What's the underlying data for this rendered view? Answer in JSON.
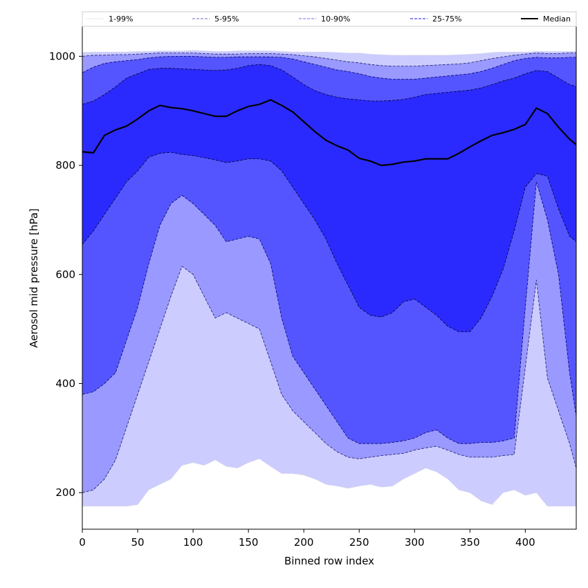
{
  "chart_data": {
    "type": "area",
    "title": "",
    "xlabel": "Binned row index",
    "ylabel": "Aerosol mid pressure [hPa]",
    "xlim": [
      0,
      446
    ],
    "ylim": [
      133,
      1055
    ],
    "xticks": [
      0,
      50,
      100,
      150,
      200,
      250,
      300,
      350,
      400
    ],
    "yticks": [
      200,
      400,
      600,
      800,
      1000
    ],
    "grid": false,
    "legend_position": "top",
    "x": [
      0,
      10,
      20,
      30,
      40,
      50,
      60,
      70,
      80,
      90,
      100,
      110,
      120,
      130,
      140,
      150,
      160,
      170,
      180,
      190,
      200,
      210,
      220,
      230,
      240,
      250,
      260,
      270,
      280,
      290,
      300,
      310,
      320,
      330,
      340,
      350,
      360,
      370,
      380,
      390,
      400,
      410,
      420,
      430,
      440,
      446
    ],
    "bands": [
      {
        "name": "1-99%",
        "color": "#ccccff",
        "line_style": "dotted",
        "line_color": "#d0d0d0",
        "lower": [
          175,
          175,
          175,
          175,
          175,
          178,
          205,
          215,
          225,
          250,
          255,
          250,
          260,
          248,
          245,
          255,
          262,
          248,
          235,
          235,
          232,
          225,
          215,
          212,
          208,
          212,
          215,
          210,
          212,
          225,
          235,
          245,
          238,
          225,
          205,
          200,
          185,
          178,
          200,
          205,
          195,
          200,
          175,
          175,
          175,
          175
        ],
        "upper": [
          1007,
          1008,
          1008,
          1008,
          1008,
          1009,
          1009,
          1010,
          1010,
          1010,
          1011,
          1010,
          1009,
          1009,
          1010,
          1010,
          1010,
          1010,
          1009,
          1008,
          1008,
          1008,
          1008,
          1007,
          1006,
          1006,
          1004,
          1003,
          1002,
          1002,
          1002,
          1002,
          1002,
          1002,
          1003,
          1004,
          1005,
          1007,
          1008,
          1008,
          1008,
          1009,
          1009,
          1009,
          1009,
          1009
        ]
      },
      {
        "name": "5-95%",
        "color": "#9999ff",
        "line_style": "dashed",
        "line_color": "#1a1a66",
        "lower": [
          200,
          205,
          225,
          260,
          320,
          380,
          440,
          500,
          560,
          615,
          600,
          560,
          520,
          530,
          520,
          510,
          500,
          440,
          380,
          350,
          330,
          310,
          290,
          275,
          265,
          262,
          265,
          268,
          270,
          272,
          278,
          282,
          285,
          278,
          270,
          265,
          265,
          265,
          268,
          270,
          430,
          590,
          410,
          350,
          290,
          245
        ],
        "upper": [
          1000,
          1002,
          1002,
          1003,
          1003,
          1004,
          1005,
          1006,
          1006,
          1006,
          1006,
          1005,
          1004,
          1004,
          1004,
          1005,
          1005,
          1005,
          1004,
          1003,
          1001,
          999,
          996,
          993,
          990,
          988,
          985,
          983,
          982,
          982,
          982,
          983,
          984,
          985,
          986,
          988,
          992,
          996,
          999,
          1002,
          1004,
          1006,
          1005,
          1005,
          1006,
          1006
        ]
      },
      {
        "name": "10-90%",
        "color": "#5555ff",
        "line_style": "dashed",
        "line_color": "#000066",
        "lower": [
          380,
          385,
          400,
          420,
          480,
          540,
          620,
          690,
          730,
          745,
          730,
          710,
          690,
          660,
          665,
          670,
          665,
          620,
          520,
          450,
          420,
          390,
          360,
          330,
          300,
          290,
          290,
          290,
          292,
          295,
          300,
          310,
          315,
          300,
          290,
          290,
          292,
          292,
          295,
          300,
          540,
          770,
          700,
          600,
          420,
          340
        ],
        "upper": [
          970,
          980,
          987,
          990,
          992,
          994,
          997,
          999,
          1000,
          1000,
          1000,
          999,
          998,
          998,
          999,
          999,
          999,
          999,
          998,
          995,
          990,
          985,
          980,
          975,
          972,
          968,
          963,
          960,
          958,
          958,
          958,
          960,
          962,
          964,
          966,
          968,
          972,
          978,
          985,
          992,
          996,
          998,
          997,
          997,
          998,
          998
        ]
      },
      {
        "name": "25-75%",
        "color": "#2a2aff",
        "line_style": "dashed",
        "line_color": "#000033",
        "lower": [
          655,
          680,
          710,
          740,
          770,
          790,
          815,
          822,
          824,
          820,
          818,
          814,
          810,
          805,
          808,
          812,
          812,
          808,
          790,
          760,
          730,
          700,
          665,
          620,
          580,
          540,
          525,
          522,
          530,
          550,
          555,
          540,
          525,
          505,
          495,
          495,
          520,
          560,
          610,
          680,
          760,
          785,
          780,
          720,
          670,
          660
        ],
        "upper": [
          912,
          918,
          930,
          944,
          960,
          968,
          976,
          978,
          978,
          977,
          976,
          975,
          974,
          975,
          978,
          983,
          985,
          983,
          975,
          962,
          948,
          937,
          930,
          925,
          922,
          920,
          918,
          918,
          919,
          921,
          925,
          930,
          932,
          934,
          936,
          938,
          942,
          948,
          955,
          960,
          968,
          974,
          972,
          960,
          948,
          945
        ]
      }
    ],
    "series": [
      {
        "name": "Median",
        "color": "#000000",
        "values": [
          825,
          823,
          855,
          865,
          872,
          885,
          900,
          910,
          906,
          904,
          900,
          895,
          890,
          890,
          900,
          908,
          912,
          920,
          910,
          898,
          880,
          862,
          846,
          836,
          828,
          813,
          808,
          800,
          802,
          806,
          808,
          812,
          812,
          812,
          822,
          834,
          845,
          855,
          860,
          866,
          875,
          905,
          895,
          870,
          848,
          838
        ]
      }
    ],
    "legend": [
      {
        "label": "1-99%",
        "color": "#d0d0d0",
        "style": "dotted"
      },
      {
        "label": "5-95%",
        "color": "#8a8ac6",
        "style": "dashed"
      },
      {
        "label": "10-90%",
        "color": "#8888ff",
        "style": "dashed"
      },
      {
        "label": "25-75%",
        "color": "#4444ee",
        "style": "dashed"
      },
      {
        "label": "Median",
        "color": "#000000",
        "style": "solid"
      }
    ]
  }
}
